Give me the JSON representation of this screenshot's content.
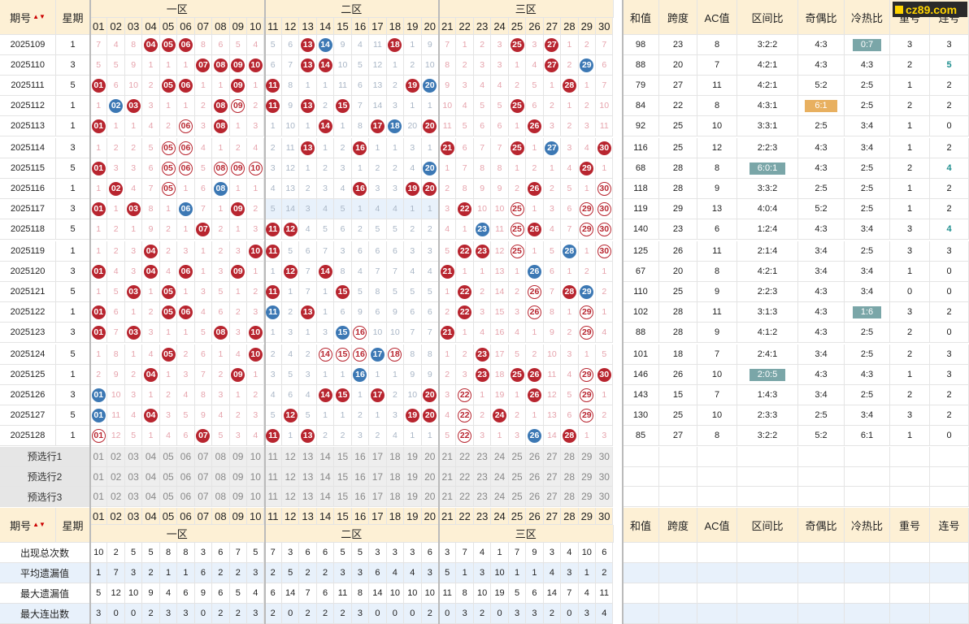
{
  "header": {
    "issue": "期号",
    "week": "星期",
    "zone1": "一区",
    "zone2": "二区",
    "zone3": "三区",
    "sum": "和值",
    "span": "跨度",
    "ac": "AC值",
    "zone_ratio": "区间比",
    "odd_even": "奇偶比",
    "hot_cold": "冷热比",
    "repeat": "重号",
    "consecutive": "连号",
    "numbers": [
      "01",
      "02",
      "03",
      "04",
      "05",
      "06",
      "07",
      "08",
      "09",
      "10",
      "11",
      "12",
      "13",
      "14",
      "15",
      "16",
      "17",
      "18",
      "19",
      "20",
      "21",
      "22",
      "23",
      "24",
      "25",
      "26",
      "27",
      "28",
      "29",
      "30"
    ]
  },
  "logo": "cz89.com",
  "rows": [
    {
      "issue": "2025109",
      "week": "1",
      "cells": [
        "7",
        "4",
        "8",
        "04",
        "05",
        "06",
        "8",
        "6",
        "5",
        "4",
        "5",
        "6",
        "13",
        "14",
        "9",
        "4",
        "11",
        "18",
        "1",
        "9",
        "7",
        "1",
        "2",
        "3",
        "25",
        "3",
        "27",
        "1",
        "2",
        "7"
      ],
      "win": [
        4,
        5,
        6,
        13,
        18,
        25,
        27
      ],
      "repeat": [
        14
      ],
      "sum": "98",
      "span": "23",
      "ac": "8",
      "zr": "3:2:2",
      "oe": "4:3",
      "hc": "0:7",
      "hcStyle": "hl",
      "rep": "3",
      "con": "3"
    },
    {
      "issue": "2025110",
      "week": "3",
      "cells": [
        "5",
        "5",
        "9",
        "1",
        "1",
        "1",
        "07",
        "08",
        "09",
        "10",
        "6",
        "7",
        "13",
        "14",
        "10",
        "5",
        "12",
        "1",
        "2",
        "10",
        "8",
        "2",
        "3",
        "3",
        "1",
        "4",
        "27",
        "2",
        "29",
        "6"
      ],
      "win": [
        7,
        8,
        9,
        10,
        13,
        14,
        27
      ],
      "repeat": [
        29
      ],
      "sum": "88",
      "span": "20",
      "ac": "7",
      "zr": "4:2:1",
      "oe": "4:3",
      "hc": "4:3",
      "rep": "2",
      "con": "5",
      "conStyle": "lian"
    },
    {
      "issue": "2025111",
      "week": "5",
      "cells": [
        "01",
        "6",
        "10",
        "2",
        "05",
        "06",
        "1",
        "1",
        "09",
        "1",
        "11",
        "8",
        "1",
        "1",
        "11",
        "6",
        "13",
        "2",
        "19",
        "20",
        "9",
        "3",
        "4",
        "4",
        "2",
        "5",
        "1",
        "28",
        "1",
        "7"
      ],
      "win": [
        1,
        5,
        6,
        9,
        11,
        19,
        28
      ],
      "repeat": [
        20
      ],
      "sum": "79",
      "span": "27",
      "ac": "11",
      "zr": "4:2:1",
      "oe": "5:2",
      "hc": "2:5",
      "rep": "1",
      "con": "2"
    },
    {
      "issue": "2025112",
      "week": "1",
      "cells": [
        "1",
        "02",
        "03",
        "3",
        "1",
        "1",
        "2",
        "08",
        "09",
        "2",
        "11",
        "9",
        "13",
        "2",
        "15",
        "7",
        "14",
        "3",
        "1",
        "1",
        "10",
        "4",
        "5",
        "5",
        "25",
        "6",
        "2",
        "1",
        "2",
        "10"
      ],
      "win": [
        3,
        8,
        11,
        13,
        15,
        25
      ],
      "repeat": [
        2
      ],
      "ringExtra": [
        9
      ],
      "sum": "84",
      "span": "22",
      "ac": "8",
      "zr": "4:3:1",
      "oe": "6:1",
      "oeStyle": "hlo",
      "hc": "2:5",
      "rep": "2",
      "con": "2"
    },
    {
      "issue": "2025113",
      "week": "1",
      "cells": [
        "01",
        "1",
        "1",
        "4",
        "2",
        "06",
        "3",
        "08",
        "1",
        "3",
        "1",
        "10",
        "1",
        "14",
        "1",
        "8",
        "17",
        "18",
        "20",
        "20",
        "11",
        "5",
        "6",
        "6",
        "1",
        "26",
        "3",
        "2",
        "3",
        "11"
      ],
      "win": [
        1,
        8,
        14,
        17,
        20,
        26
      ],
      "repeat": [
        18
      ],
      "ringExtra": [
        6
      ],
      "sum": "92",
      "span": "25",
      "ac": "10",
      "zr": "3:3:1",
      "oe": "2:5",
      "hc": "3:4",
      "rep": "1",
      "con": "0"
    },
    {
      "issue": "2025114",
      "week": "3",
      "cells": [
        "1",
        "2",
        "2",
        "5",
        "05",
        "06",
        "4",
        "1",
        "2",
        "4",
        "2",
        "11",
        "13",
        "1",
        "2",
        "16",
        "1",
        "1",
        "3",
        "1",
        "21",
        "6",
        "7",
        "7",
        "25",
        "1",
        "27",
        "3",
        "4",
        "30"
      ],
      "win": [
        13,
        16,
        21,
        25,
        30
      ],
      "repeat": [
        27
      ],
      "ringExtra": [
        5,
        6
      ],
      "sum": "116",
      "span": "25",
      "ac": "12",
      "zr": "2:2:3",
      "oe": "4:3",
      "hc": "3:4",
      "rep": "1",
      "con": "2"
    },
    {
      "issue": "2025115",
      "week": "5",
      "cells": [
        "01",
        "3",
        "3",
        "6",
        "05",
        "06",
        "5",
        "08",
        "09",
        "10",
        "3",
        "12",
        "1",
        "2",
        "3",
        "1",
        "2",
        "2",
        "4",
        "20",
        "1",
        "7",
        "8",
        "8",
        "1",
        "2",
        "1",
        "4",
        "29",
        "1"
      ],
      "win": [
        1,
        29
      ],
      "repeat": [
        20
      ],
      "ringExtra": [
        5,
        6,
        8,
        9,
        10
      ],
      "sum": "68",
      "span": "28",
      "ac": "8",
      "zr": "6:0:1",
      "zrStyle": "hl",
      "oe": "4:3",
      "hc": "2:5",
      "rep": "2",
      "con": "4",
      "conStyle": "lian"
    },
    {
      "issue": "2025116",
      "week": "1",
      "cells": [
        "1",
        "02",
        "4",
        "7",
        "05",
        "1",
        "6",
        "08",
        "1",
        "1",
        "4",
        "13",
        "2",
        "3",
        "4",
        "16",
        "3",
        "3",
        "19",
        "20",
        "2",
        "8",
        "9",
        "9",
        "2",
        "26",
        "2",
        "5",
        "1",
        "30"
      ],
      "win": [
        2,
        16,
        19,
        20,
        26
      ],
      "repeat": [
        8
      ],
      "ringExtra": [
        5,
        30
      ],
      "sum": "118",
      "span": "28",
      "ac": "9",
      "zr": "3:3:2",
      "oe": "2:5",
      "hc": "2:5",
      "rep": "1",
      "con": "2"
    },
    {
      "issue": "2025117",
      "week": "3",
      "cells": [
        "01",
        "1",
        "03",
        "8",
        "1",
        "06",
        "7",
        "1",
        "09",
        "2",
        "5",
        "14",
        "3",
        "4",
        "5",
        "1",
        "4",
        "4",
        "1",
        "1",
        "3",
        "22",
        "10",
        "10",
        "25",
        "1",
        "3",
        "6",
        "29",
        "30"
      ],
      "win": [
        1,
        3,
        9,
        22
      ],
      "repeat": [
        6
      ],
      "ringExtra": [
        25,
        29,
        30
      ],
      "hiBand": [
        11,
        20
      ],
      "sum": "119",
      "span": "29",
      "ac": "13",
      "zr": "4:0:4",
      "oe": "5:2",
      "hc": "2:5",
      "rep": "1",
      "con": "2"
    },
    {
      "issue": "2025118",
      "week": "5",
      "cells": [
        "1",
        "2",
        "1",
        "9",
        "2",
        "1",
        "07",
        "2",
        "1",
        "3",
        "11",
        "12",
        "4",
        "5",
        "6",
        "2",
        "5",
        "5",
        "2",
        "2",
        "4",
        "1",
        "23",
        "11",
        "25",
        "26",
        "4",
        "7",
        "29",
        "30"
      ],
      "win": [
        7,
        11,
        12,
        26
      ],
      "repeat": [
        23
      ],
      "ringExtra": [
        25,
        29,
        30
      ],
      "sum": "140",
      "span": "23",
      "ac": "6",
      "zr": "1:2:4",
      "oe": "4:3",
      "hc": "3:4",
      "rep": "3",
      "con": "4",
      "conStyle": "lian"
    },
    {
      "issue": "2025119",
      "week": "1",
      "cells": [
        "1",
        "2",
        "3",
        "04",
        "2",
        "3",
        "1",
        "2",
        "3",
        "10",
        "11",
        "5",
        "6",
        "7",
        "3",
        "6",
        "6",
        "6",
        "3",
        "3",
        "5",
        "22",
        "23",
        "12",
        "25",
        "1",
        "5",
        "28",
        "1",
        "30"
      ],
      "win": [
        4,
        10,
        11,
        22,
        23
      ],
      "repeat": [
        28
      ],
      "ringExtra": [
        25,
        30
      ],
      "sum": "125",
      "span": "26",
      "ac": "11",
      "zr": "2:1:4",
      "oe": "3:4",
      "hc": "2:5",
      "rep": "3",
      "con": "3"
    },
    {
      "issue": "2025120",
      "week": "3",
      "cells": [
        "01",
        "4",
        "3",
        "04",
        "4",
        "06",
        "1",
        "3",
        "09",
        "1",
        "1",
        "12",
        "7",
        "14",
        "8",
        "4",
        "7",
        "7",
        "4",
        "4",
        "21",
        "1",
        "1",
        "13",
        "1",
        "26",
        "6",
        "1",
        "2",
        "1"
      ],
      "win": [
        1,
        4,
        6,
        9,
        12,
        14,
        21
      ],
      "repeat": [
        26
      ],
      "sum": "67",
      "span": "20",
      "ac": "8",
      "zr": "4:2:1",
      "oe": "3:4",
      "hc": "3:4",
      "rep": "1",
      "con": "0"
    },
    {
      "issue": "2025121",
      "week": "5",
      "cells": [
        "1",
        "5",
        "03",
        "1",
        "05",
        "1",
        "3",
        "5",
        "1",
        "2",
        "11",
        "1",
        "7",
        "1",
        "15",
        "5",
        "8",
        "5",
        "5",
        "5",
        "1",
        "22",
        "2",
        "14",
        "2",
        "26",
        "7",
        "28",
        "29",
        "2"
      ],
      "win": [
        3,
        5,
        11,
        15,
        22,
        28
      ],
      "repeat": [
        29
      ],
      "ringExtra": [
        26
      ],
      "sum": "110",
      "span": "25",
      "ac": "9",
      "zr": "2:2:3",
      "oe": "4:3",
      "hc": "3:4",
      "rep": "0",
      "con": "0"
    },
    {
      "issue": "2025122",
      "week": "1",
      "cells": [
        "01",
        "6",
        "1",
        "2",
        "05",
        "06",
        "4",
        "6",
        "2",
        "3",
        "11",
        "2",
        "13",
        "1",
        "6",
        "9",
        "6",
        "9",
        "6",
        "6",
        "2",
        "22",
        "3",
        "15",
        "3",
        "26",
        "8",
        "1",
        "29",
        "1"
      ],
      "win": [
        1,
        5,
        6,
        13,
        22
      ],
      "repeat": [
        11
      ],
      "ringExtra": [
        26,
        29
      ],
      "sum": "102",
      "span": "28",
      "ac": "11",
      "zr": "3:1:3",
      "oe": "4:3",
      "hc": "1:6",
      "hcStyle": "hl",
      "rep": "3",
      "con": "2"
    },
    {
      "issue": "2025123",
      "week": "3",
      "cells": [
        "01",
        "7",
        "03",
        "3",
        "1",
        "1",
        "5",
        "08",
        "3",
        "10",
        "1",
        "3",
        "1",
        "3",
        "15",
        "16",
        "10",
        "10",
        "7",
        "7",
        "21",
        "1",
        "4",
        "16",
        "4",
        "1",
        "9",
        "2",
        "29",
        "4"
      ],
      "win": [
        1,
        3,
        8,
        10,
        21
      ],
      "repeat": [
        15
      ],
      "ringExtra": [
        16,
        29
      ],
      "sum": "88",
      "span": "28",
      "ac": "9",
      "zr": "4:1:2",
      "oe": "4:3",
      "hc": "2:5",
      "rep": "2",
      "con": "0"
    },
    {
      "issue": "2025124",
      "week": "5",
      "cells": [
        "1",
        "8",
        "1",
        "4",
        "05",
        "2",
        "6",
        "1",
        "4",
        "10",
        "2",
        "4",
        "2",
        "14",
        "15",
        "16",
        "17",
        "18",
        "8",
        "8",
        "1",
        "2",
        "23",
        "17",
        "5",
        "2",
        "10",
        "3",
        "1",
        "5"
      ],
      "win": [
        5,
        10,
        23
      ],
      "repeat": [
        17
      ],
      "ringExtra": [
        14,
        15,
        16,
        18
      ],
      "sum": "101",
      "span": "18",
      "ac": "7",
      "zr": "2:4:1",
      "oe": "3:4",
      "hc": "2:5",
      "rep": "2",
      "con": "3"
    },
    {
      "issue": "2025125",
      "week": "1",
      "cells": [
        "2",
        "9",
        "2",
        "04",
        "1",
        "3",
        "7",
        "2",
        "09",
        "1",
        "3",
        "5",
        "3",
        "1",
        "1",
        "16",
        "1",
        "1",
        "9",
        "9",
        "2",
        "3",
        "23",
        "18",
        "25",
        "26",
        "11",
        "4",
        "29",
        "30"
      ],
      "win": [
        4,
        9,
        23,
        25,
        26,
        30
      ],
      "repeat": [
        16
      ],
      "ringExtra": [
        29
      ],
      "sum": "146",
      "span": "26",
      "ac": "10",
      "zr": "2:0:5",
      "zrStyle": "hl",
      "oe": "4:3",
      "hc": "4:3",
      "rep": "1",
      "con": "3"
    },
    {
      "issue": "2025126",
      "week": "3",
      "cells": [
        "01",
        "10",
        "3",
        "1",
        "2",
        "4",
        "8",
        "3",
        "1",
        "2",
        "4",
        "6",
        "4",
        "14",
        "15",
        "1",
        "17",
        "2",
        "10",
        "20",
        "3",
        "22",
        "1",
        "19",
        "1",
        "26",
        "12",
        "5",
        "29",
        "1"
      ],
      "win": [
        14,
        15,
        17,
        20,
        26
      ],
      "repeat": [
        1
      ],
      "ringExtra": [
        22,
        29
      ],
      "sum": "143",
      "span": "15",
      "ac": "7",
      "zr": "1:4:3",
      "oe": "3:4",
      "hc": "2:5",
      "rep": "2",
      "con": "2"
    },
    {
      "issue": "2025127",
      "week": "5",
      "cells": [
        "01",
        "11",
        "4",
        "04",
        "3",
        "5",
        "9",
        "4",
        "2",
        "3",
        "5",
        "12",
        "5",
        "1",
        "1",
        "2",
        "1",
        "3",
        "19",
        "20",
        "4",
        "22",
        "2",
        "24",
        "2",
        "1",
        "13",
        "6",
        "29",
        "2"
      ],
      "win": [
        4,
        12,
        19,
        20,
        24
      ],
      "repeat": [
        1
      ],
      "ringExtra": [
        22,
        29
      ],
      "sum": "130",
      "span": "25",
      "ac": "10",
      "zr": "2:3:3",
      "oe": "2:5",
      "hc": "3:4",
      "rep": "3",
      "con": "2"
    },
    {
      "issue": "2025128",
      "week": "1",
      "cells": [
        "01",
        "12",
        "5",
        "1",
        "4",
        "6",
        "07",
        "5",
        "3",
        "4",
        "11",
        "1",
        "13",
        "2",
        "2",
        "3",
        "2",
        "4",
        "1",
        "1",
        "5",
        "22",
        "3",
        "1",
        "3",
        "26",
        "14",
        "28",
        "1",
        "3"
      ],
      "win": [
        7,
        11,
        13,
        28
      ],
      "repeat": [
        26
      ],
      "ringExtra": [
        1,
        22
      ],
      "sum": "85",
      "span": "27",
      "ac": "8",
      "zr": "3:2:2",
      "oe": "5:2",
      "hc": "6:1",
      "rep": "1",
      "con": "0"
    }
  ],
  "preselect": [
    "预选行1",
    "预选行2",
    "预选行3"
  ],
  "stats": [
    {
      "label": "出现总次数",
      "values": [
        "10",
        "2",
        "5",
        "5",
        "8",
        "8",
        "3",
        "6",
        "7",
        "5",
        "7",
        "3",
        "6",
        "6",
        "5",
        "5",
        "3",
        "3",
        "3",
        "6",
        "3",
        "7",
        "4",
        "1",
        "7",
        "9",
        "3",
        "4",
        "10",
        "6"
      ]
    },
    {
      "label": "平均遗漏值",
      "values": [
        "1",
        "7",
        "3",
        "2",
        "1",
        "1",
        "6",
        "2",
        "2",
        "3",
        "2",
        "5",
        "2",
        "2",
        "3",
        "3",
        "6",
        "4",
        "4",
        "3",
        "5",
        "1",
        "3",
        "10",
        "1",
        "1",
        "4",
        "3",
        "1",
        "2"
      ]
    },
    {
      "label": "最大遗漏值",
      "values": [
        "5",
        "12",
        "10",
        "9",
        "4",
        "6",
        "9",
        "6",
        "5",
        "4",
        "6",
        "14",
        "7",
        "6",
        "11",
        "8",
        "14",
        "10",
        "10",
        "10",
        "11",
        "8",
        "10",
        "19",
        "5",
        "6",
        "14",
        "7",
        "4",
        "11"
      ]
    },
    {
      "label": "最大连出数",
      "values": [
        "3",
        "0",
        "0",
        "2",
        "3",
        "3",
        "0",
        "2",
        "2",
        "3",
        "2",
        "0",
        "2",
        "2",
        "2",
        "3",
        "0",
        "0",
        "0",
        "2",
        "0",
        "3",
        "2",
        "0",
        "3",
        "3",
        "2",
        "0",
        "3",
        "4"
      ]
    }
  ]
}
